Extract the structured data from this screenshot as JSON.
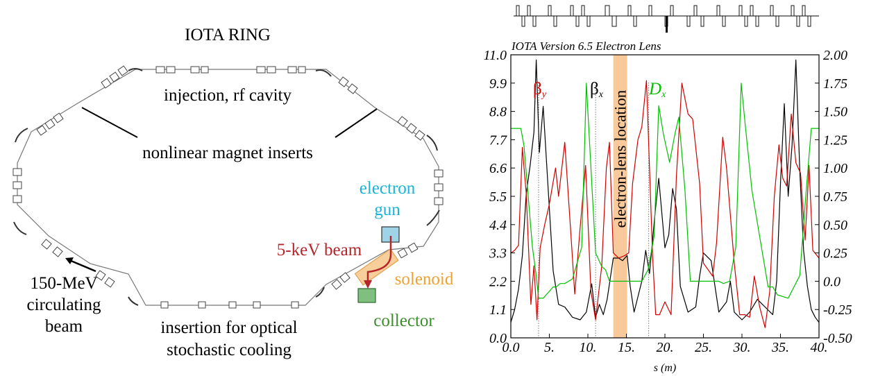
{
  "ring": {
    "title": "IOTA RING",
    "injection_label": "injection, rf cavity",
    "nonlinear_label": "nonlinear magnet inserts",
    "gun_label_1": "electron",
    "gun_label_2": "gun",
    "beam5kev_label": "5-keV beam",
    "solenoid_label": "solenoid",
    "collector_label": "collector",
    "circ_label_1": "150-MeV",
    "circ_label_2": "circulating",
    "circ_label_3": "beam",
    "osc_label_1": "insertion for optical",
    "osc_label_2": "stochastic cooling",
    "colors": {
      "gun": "#9fd3e8",
      "gun_text": "#19b4d8",
      "solenoid": "#f8cf9a",
      "solenoid_text": "#f0a030",
      "collector": "#7fbf7f",
      "collector_text": "#3d8c2e",
      "beam": "#b5252a"
    }
  },
  "chart_data": {
    "type": "line",
    "title": "IOTA Version 6.5 Electron Lens",
    "xlabel": "s (m)",
    "xlim": [
      0,
      40
    ],
    "ylim_left": [
      0,
      11
    ],
    "ylim_right": [
      -0.5,
      2.0
    ],
    "xticks": [
      "0.0",
      "5.",
      "10.",
      "15.",
      "20.",
      "25.",
      "30.",
      "35.",
      "40."
    ],
    "yticks_left": [
      "0.0",
      "1.1",
      "2.2",
      "3.3",
      "4.4",
      "5.5",
      "6.6",
      "7.7",
      "8.8",
      "9.9",
      "11.0"
    ],
    "yticks_right": [
      "-0.50",
      "-0.25",
      "0.0",
      "0.25",
      "0.50",
      "0.75",
      "1.00",
      "1.25",
      "1.50",
      "1.75",
      "2.00"
    ],
    "band": {
      "label": "electron-lens location",
      "x_range": [
        13.3,
        15.1
      ],
      "color": "#f8c99a"
    },
    "series": [
      {
        "name": "βx",
        "axis": "left",
        "color": "#000000",
        "x": [
          0,
          0.5,
          1,
          1.5,
          2,
          2.5,
          3,
          3.3,
          3.7,
          4.2,
          4.8,
          5.5,
          6.2,
          7,
          7.5,
          8,
          9,
          9.8,
          10.5,
          11,
          11.5,
          12,
          12.5,
          13.3,
          14,
          14.5,
          15.1,
          15.5,
          16,
          17,
          17.5,
          18,
          18.7,
          19.2,
          20,
          20.5,
          21,
          21.5,
          22,
          23,
          24,
          24.5,
          25,
          26,
          27,
          28,
          28.5,
          29,
          30,
          31,
          32,
          33,
          34,
          34.5,
          35,
          35.5,
          36,
          36.5,
          37,
          37.5,
          38,
          38.5,
          39,
          39.5,
          40
        ],
        "y": [
          0.6,
          1.1,
          1.9,
          3.2,
          5.6,
          6.7,
          8.0,
          10.8,
          7.2,
          9.0,
          6.0,
          2.6,
          1.3,
          1.2,
          1.0,
          0.8,
          0.7,
          1.0,
          2.1,
          0.8,
          1.3,
          0.9,
          1.5,
          3.1,
          3.1,
          3.0,
          3.2,
          2.0,
          1.0,
          2.2,
          3.4,
          2.5,
          4.8,
          6.2,
          3.5,
          4.0,
          5.8,
          5.0,
          2.0,
          1.0,
          1.2,
          2.4,
          3.3,
          3.0,
          1.0,
          1.4,
          2.2,
          1.0,
          0.7,
          1.0,
          1.5,
          1.2,
          0.9,
          2.2,
          6.0,
          9.1,
          5.5,
          7.5,
          10.8,
          6.5,
          3.4,
          2.0,
          1.1,
          0.8,
          0.6
        ]
      },
      {
        "name": "βy",
        "axis": "left",
        "color": "#d10000",
        "x": [
          0,
          0.5,
          1,
          1.5,
          2,
          2.6,
          3,
          3.4,
          3.8,
          4.4,
          5,
          5.8,
          6.2,
          7,
          7.8,
          8.3,
          9,
          9.7,
          10.4,
          11,
          11.8,
          12.4,
          12.8,
          13.3,
          14,
          14.8,
          15.3,
          15.8,
          16.5,
          17,
          17.6,
          18.4,
          18.8,
          19.3,
          20,
          20.8,
          21.5,
          22.2,
          23,
          23.6,
          24.5,
          25,
          26.2,
          26.7,
          27.5,
          28,
          29,
          29.7,
          30.4,
          31,
          31.6,
          32.3,
          33,
          33.6,
          34.2,
          34.8,
          35.3,
          35.8,
          36.4,
          37,
          37.6,
          38.2,
          38.7,
          39.2,
          40
        ],
        "y": [
          3.3,
          3.4,
          3.6,
          7.4,
          5.6,
          1.3,
          2.8,
          0.7,
          3.5,
          4.4,
          5.2,
          6.6,
          5.5,
          7.6,
          4.0,
          1.7,
          4.3,
          6.7,
          1.8,
          0.7,
          2.8,
          6.6,
          7.6,
          3.3,
          3.1,
          3.2,
          3.3,
          6.0,
          7.7,
          8.2,
          10.0,
          3.2,
          0.9,
          0.9,
          1.4,
          0.9,
          6.3,
          9.9,
          8.7,
          8.5,
          6.0,
          2.9,
          2.4,
          3.7,
          7.8,
          6.6,
          2.9,
          0.9,
          0.9,
          0.8,
          2.4,
          1.2,
          0.4,
          1.8,
          5.5,
          7.5,
          6.2,
          5.9,
          8.7,
          6.8,
          6.4,
          3.8,
          6.7,
          3.4,
          3.1
        ]
      },
      {
        "name": "Dx",
        "axis": "right",
        "color": "#00c000",
        "x": [
          0,
          1.3,
          1.7,
          2.8,
          3.3,
          3.6,
          4.2,
          5.5,
          5.9,
          6.4,
          7,
          7.5,
          8,
          9.2,
          9.8,
          10.4,
          11,
          11.8,
          12.3,
          12.8,
          13.3,
          15.1,
          17,
          17.8,
          18.6,
          19.2,
          19.8,
          20.6,
          21.3,
          21.8,
          22.6,
          23.3,
          27,
          27.6,
          28.4,
          29.2,
          29.9,
          30.4,
          31.3,
          33.4,
          34,
          34.6,
          36,
          37.5,
          38.4,
          39,
          40
        ],
        "y": [
          1.35,
          1.35,
          1.2,
          0.3,
          0.05,
          -0.15,
          -0.15,
          -0.05,
          -0.05,
          -0.02,
          -0.02,
          0.0,
          0.02,
          0.3,
          1.75,
          1.0,
          0.25,
          0.13,
          0.1,
          0.0,
          0.0,
          0.0,
          0.0,
          0.1,
          0.4,
          1.55,
          1.3,
          1.05,
          1.3,
          1.45,
          0.8,
          0.0,
          0.0,
          -0.02,
          0.0,
          0.3,
          1.75,
          1.4,
          0.8,
          -0.05,
          -0.05,
          -0.12,
          -0.15,
          0.05,
          0.85,
          1.35,
          1.35
        ]
      }
    ],
    "legend": [
      {
        "text": "β",
        "sub": "y",
        "color": "#d10000"
      },
      {
        "text": "β",
        "sub": "x",
        "color": "#000000"
      },
      {
        "text": "D",
        "sub": "x",
        "color": "#00c000"
      }
    ]
  }
}
